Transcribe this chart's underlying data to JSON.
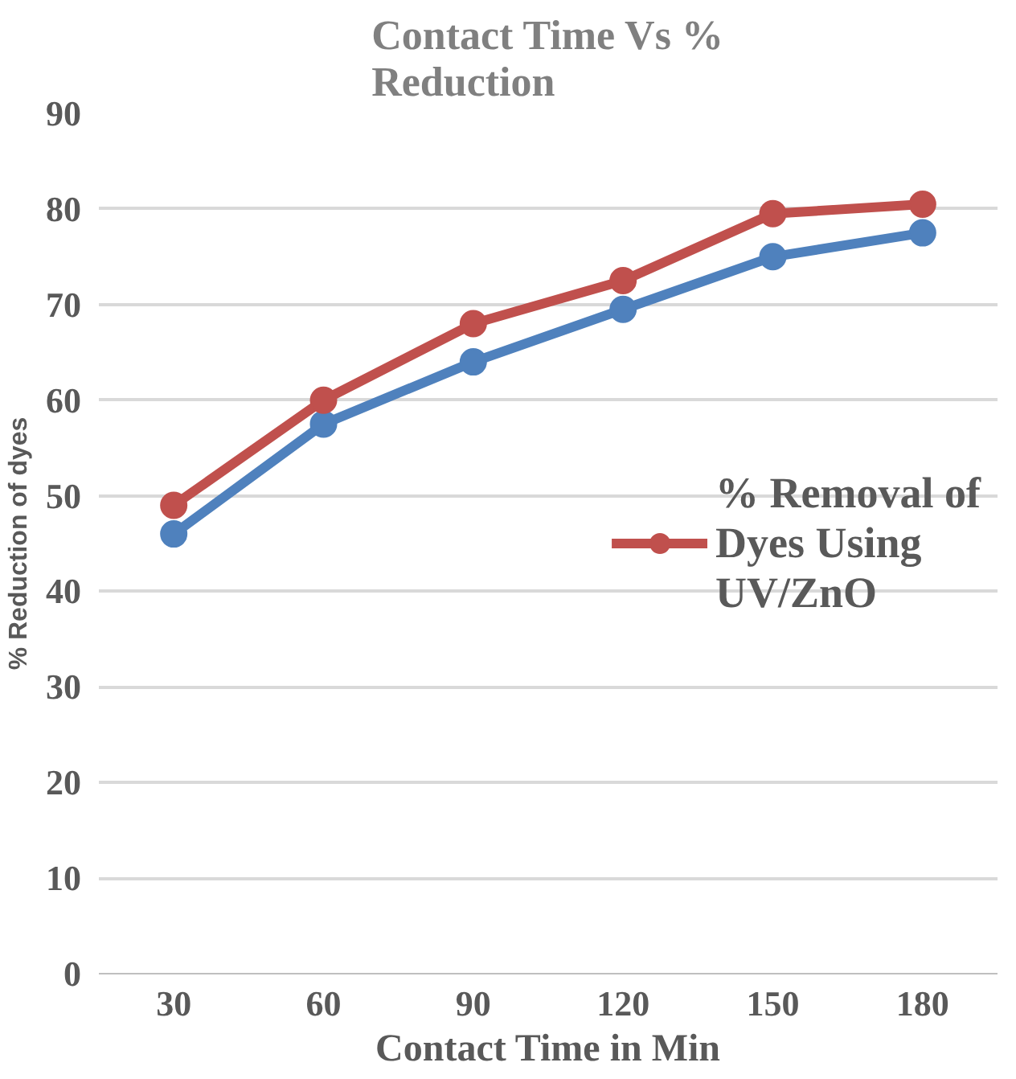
{
  "chart_data": {
    "type": "line",
    "title": "Contact Time Vs % Reduction",
    "xlabel": "Contact Time in Min",
    "ylabel": "% Reduction of dyes",
    "categories": [
      "30",
      "60",
      "90",
      "120",
      "150",
      "180"
    ],
    "series": [
      {
        "color": "#4f81bd",
        "values": [
          46,
          57.5,
          64,
          69.5,
          75,
          77.5
        ]
      },
      {
        "name": "% Removal of Dyes Using UV/ZnO",
        "color": "#c0504d",
        "values": [
          49,
          60,
          68,
          72.5,
          79.5,
          80.5
        ]
      }
    ],
    "ylim": [
      0,
      90
    ],
    "yticks": [
      0,
      10,
      20,
      30,
      40,
      50,
      60,
      70,
      80,
      90
    ],
    "grid": "y",
    "legend": "right",
    "marker": "circle",
    "line_style": "solid"
  }
}
